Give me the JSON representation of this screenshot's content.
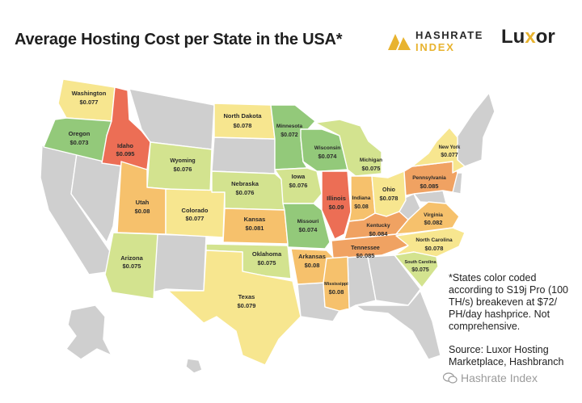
{
  "title": "Average Hosting Cost per State in the USA*",
  "brand": {
    "hashrate_line1": "HASHRATE",
    "hashrate_line2": "INDEX",
    "luxor_prefix": "Lu",
    "luxor_x": "x",
    "luxor_suffix": "or"
  },
  "colors": {
    "green": "#93c97a",
    "lightgreen": "#d3e38f",
    "yellow": "#f7e68f",
    "orange": "#f6c16c",
    "darkorange": "#f0a262",
    "red": "#ec6e55",
    "gray": "#cfcfcf",
    "border": "#ffffff"
  },
  "states": [
    {
      "id": "washington",
      "name": "Washington",
      "cost": "$0.077",
      "color": "yellow"
    },
    {
      "id": "oregon",
      "name": "Oregon",
      "cost": "$0.073",
      "color": "green"
    },
    {
      "id": "idaho",
      "name": "Idaho",
      "cost": "$0.095",
      "color": "red"
    },
    {
      "id": "wyoming",
      "name": "Wyoming",
      "cost": "$0.076",
      "color": "lightgreen"
    },
    {
      "id": "utah",
      "name": "Utah",
      "cost": "$0.08",
      "color": "orange"
    },
    {
      "id": "colorado",
      "name": "Colorado",
      "cost": "$0.077",
      "color": "yellow"
    },
    {
      "id": "arizona",
      "name": "Arizona",
      "cost": "$0.075",
      "color": "lightgreen"
    },
    {
      "id": "north-dakota",
      "name": "North Dakota",
      "cost": "$0.078",
      "color": "yellow"
    },
    {
      "id": "minnesota",
      "name": "Minnesota",
      "cost": "$0.072",
      "color": "green"
    },
    {
      "id": "nebraska",
      "name": "Nebraska",
      "cost": "$0.076",
      "color": "lightgreen"
    },
    {
      "id": "kansas",
      "name": "Kansas",
      "cost": "$0.081",
      "color": "orange"
    },
    {
      "id": "oklahoma",
      "name": "Oklahoma",
      "cost": "$0.075",
      "color": "lightgreen"
    },
    {
      "id": "texas",
      "name": "Texas",
      "cost": "$0.079",
      "color": "yellow"
    },
    {
      "id": "iowa",
      "name": "Iowa",
      "cost": "$0.076",
      "color": "lightgreen"
    },
    {
      "id": "missouri",
      "name": "Missouri",
      "cost": "$0.074",
      "color": "green"
    },
    {
      "id": "arkansas",
      "name": "Arkansas",
      "cost": "$0.08",
      "color": "orange"
    },
    {
      "id": "wisconsin",
      "name": "Wisconsin",
      "cost": "$0.074",
      "color": "green"
    },
    {
      "id": "illinois",
      "name": "Illinois",
      "cost": "$0.09",
      "color": "red"
    },
    {
      "id": "michigan",
      "name": "Michigan",
      "cost": "$0.075",
      "color": "lightgreen"
    },
    {
      "id": "indiana",
      "name": "Indiana",
      "cost": "$0.08",
      "color": "orange"
    },
    {
      "id": "ohio",
      "name": "Ohio",
      "cost": "$0.078",
      "color": "yellow"
    },
    {
      "id": "kentucky",
      "name": "Kentucky",
      "cost": "$0.084",
      "color": "darkorange"
    },
    {
      "id": "tennessee",
      "name": "Tennessee",
      "cost": "$0.085",
      "color": "darkorange"
    },
    {
      "id": "mississippi",
      "name": "Mississippi",
      "cost": "$0.08",
      "color": "orange"
    },
    {
      "id": "pennsylvania",
      "name": "Pennsylvania",
      "cost": "$0.085",
      "color": "darkorange"
    },
    {
      "id": "new-york",
      "name": "New York",
      "cost": "$0.077",
      "color": "yellow"
    },
    {
      "id": "virginia",
      "name": "Virginia",
      "cost": "$0.082",
      "color": "orange"
    },
    {
      "id": "north-carolina",
      "name": "North Carolina",
      "cost": "$0.078",
      "color": "yellow"
    },
    {
      "id": "south-carolina",
      "name": "South Carolina",
      "cost": "$0.075",
      "color": "lightgreen"
    }
  ],
  "note": {
    "asterisk_text": "*States color coded according to S19j Pro (100 TH/s) breakeven at $72/ PH/day hashprice. Not comprehensive.",
    "source_text": "Source: Luxor Hosting Marketplace, Hashbranch"
  },
  "watermark": "Hashrate Index"
}
